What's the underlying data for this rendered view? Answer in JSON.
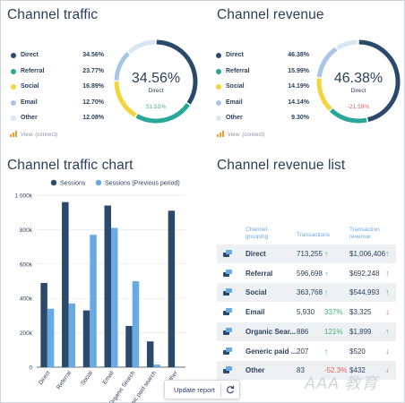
{
  "traffic": {
    "title": "Channel traffic",
    "items": [
      {
        "label": "Direct",
        "value": "34.56%",
        "color": "#2b4a6b"
      },
      {
        "label": "Referral",
        "value": "23.77%",
        "color": "#2aa79b"
      },
      {
        "label": "Social",
        "value": "16.89%",
        "color": "#f2d53c"
      },
      {
        "label": "Email",
        "value": "12.70%",
        "color": "#a9c4e4"
      },
      {
        "label": "Other",
        "value": "12.08%",
        "color": "#d9e6f4"
      }
    ],
    "donut": {
      "percent": "34.56%",
      "label": "Direct",
      "change": "51.51%",
      "change_color": "#3cb371",
      "shares": [
        34.56,
        23.77,
        16.89,
        12.7,
        12.08
      ]
    },
    "view_link": "View: (connect)"
  },
  "revenue": {
    "title": "Channel revenue",
    "items": [
      {
        "label": "Direct",
        "value": "46.38%",
        "color": "#2b4a6b"
      },
      {
        "label": "Referral",
        "value": "15.99%",
        "color": "#2aa79b"
      },
      {
        "label": "Social",
        "value": "14.19%",
        "color": "#f2d53c"
      },
      {
        "label": "Email",
        "value": "14.14%",
        "color": "#a9c4e4"
      },
      {
        "label": "Other",
        "value": "9.30%",
        "color": "#d9e6f4"
      }
    ],
    "donut": {
      "percent": "46.38%",
      "label": "Direct",
      "change": "-21.59%",
      "change_color": "#e35d5d",
      "shares": [
        46.38,
        15.99,
        14.19,
        14.14,
        9.3
      ]
    },
    "view_link": "View: (connect)"
  },
  "traffic_chart": {
    "title": "Channel traffic chart"
  },
  "chart_data": {
    "type": "bar",
    "categories": [
      "Direct",
      "Referral",
      "Social",
      "Email",
      "Organic Search",
      "Organic paid search",
      "Other"
    ],
    "series": [
      {
        "name": "Sessions",
        "color": "#2b4a6b",
        "values": [
          490000,
          960000,
          330000,
          940000,
          240000,
          150000,
          910000
        ]
      },
      {
        "name": "Sessions (Previous period)",
        "color": "#6aaae4",
        "values": [
          340000,
          370000,
          770000,
          810000,
          500000,
          15000,
          0
        ]
      }
    ],
    "yticks": [
      "0",
      "200k",
      "400k",
      "600k",
      "800k",
      "1 000k"
    ],
    "ylim": [
      0,
      1000000
    ],
    "legend": "top",
    "grid": true
  },
  "revenue_list": {
    "title": "Channel revenue list",
    "headers": {
      "grouping": "Channel grouping",
      "transactions": "Transactions",
      "revenue": "Transaction revenue"
    },
    "rows": [
      {
        "name": "Direct",
        "transactions": "713,255",
        "t_change": "↑",
        "t_dir": "up",
        "revenue": "$1,006,406",
        "r_change": "↑",
        "r_dir": "up"
      },
      {
        "name": "Referral",
        "transactions": "596,698",
        "t_change": "↑",
        "t_dir": "up",
        "revenue": "$692,248",
        "r_change": "↑",
        "r_dir": "up"
      },
      {
        "name": "Social",
        "transactions": "363,768",
        "t_change": "↑",
        "t_dir": "up",
        "revenue": "$544,993",
        "r_change": "↑",
        "r_dir": "up"
      },
      {
        "name": "Email",
        "transactions": "5,930",
        "t_change": "337%",
        "t_dir": "up",
        "revenue": "$3,325",
        "r_change": "↓",
        "r_dir": "down"
      },
      {
        "name": "Organic Sear...",
        "transactions": "886",
        "t_change": "121%",
        "t_dir": "up",
        "revenue": "$1,899",
        "r_change": "↑",
        "r_dir": "up"
      },
      {
        "name": "Generic paid ...",
        "transactions": "207",
        "t_change": "↑",
        "t_dir": "up",
        "revenue": "$520",
        "r_change": "↓",
        "r_dir": "down"
      },
      {
        "name": "Other",
        "transactions": "83",
        "t_change": "-52.3%",
        "t_dir": "down",
        "revenue": "$432",
        "r_change": "↓",
        "r_dir": "down"
      }
    ]
  },
  "update_button": {
    "label": "Update report"
  },
  "watermark": "AAA 教育"
}
